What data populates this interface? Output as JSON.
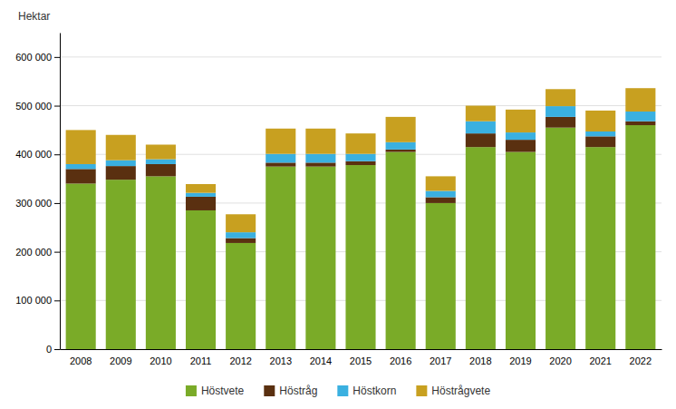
{
  "chart_data": {
    "type": "bar",
    "stacked": true,
    "y_label": "Hektar",
    "categories": [
      "2008",
      "2009",
      "2010",
      "2011",
      "2012",
      "2013",
      "2014",
      "2015",
      "2016",
      "2017",
      "2018",
      "2019",
      "2020",
      "2021",
      "2022"
    ],
    "series": [
      {
        "name": "Höstvete",
        "color": "#7aab28",
        "values": [
          340000,
          348000,
          355000,
          285000,
          218000,
          375000,
          375000,
          378000,
          405000,
          300000,
          415000,
          405000,
          455000,
          415000,
          460000
        ]
      },
      {
        "name": "Höstråg",
        "color": "#5a3010",
        "values": [
          30000,
          28000,
          25000,
          28000,
          10000,
          8000,
          8000,
          8000,
          5000,
          12000,
          28000,
          25000,
          22000,
          22000,
          8000
        ]
      },
      {
        "name": "Höstkorn",
        "color": "#3ab0e0",
        "values": [
          10000,
          12000,
          10000,
          8000,
          12000,
          18000,
          18000,
          15000,
          15000,
          13000,
          25000,
          15000,
          22000,
          10000,
          20000
        ]
      },
      {
        "name": "Höstrågvete",
        "color": "#c8a020",
        "values": [
          70000,
          52000,
          30000,
          18000,
          37000,
          52000,
          52000,
          42000,
          52000,
          30000,
          32000,
          47000,
          35000,
          43000,
          48000
        ]
      }
    ],
    "ylim": [
      0,
      650000
    ],
    "yticks": [
      0,
      {
        "value": 100000,
        "label": "100 000"
      },
      {
        "value": 200000,
        "label": "200 000"
      },
      {
        "value": 300000,
        "label": "300 000"
      },
      {
        "value": 400000,
        "label": "400 000"
      },
      {
        "value": 500000,
        "label": "500 000"
      },
      {
        "value": 600000,
        "label": "600 000"
      }
    ],
    "grid": true,
    "legend": "bottom"
  }
}
